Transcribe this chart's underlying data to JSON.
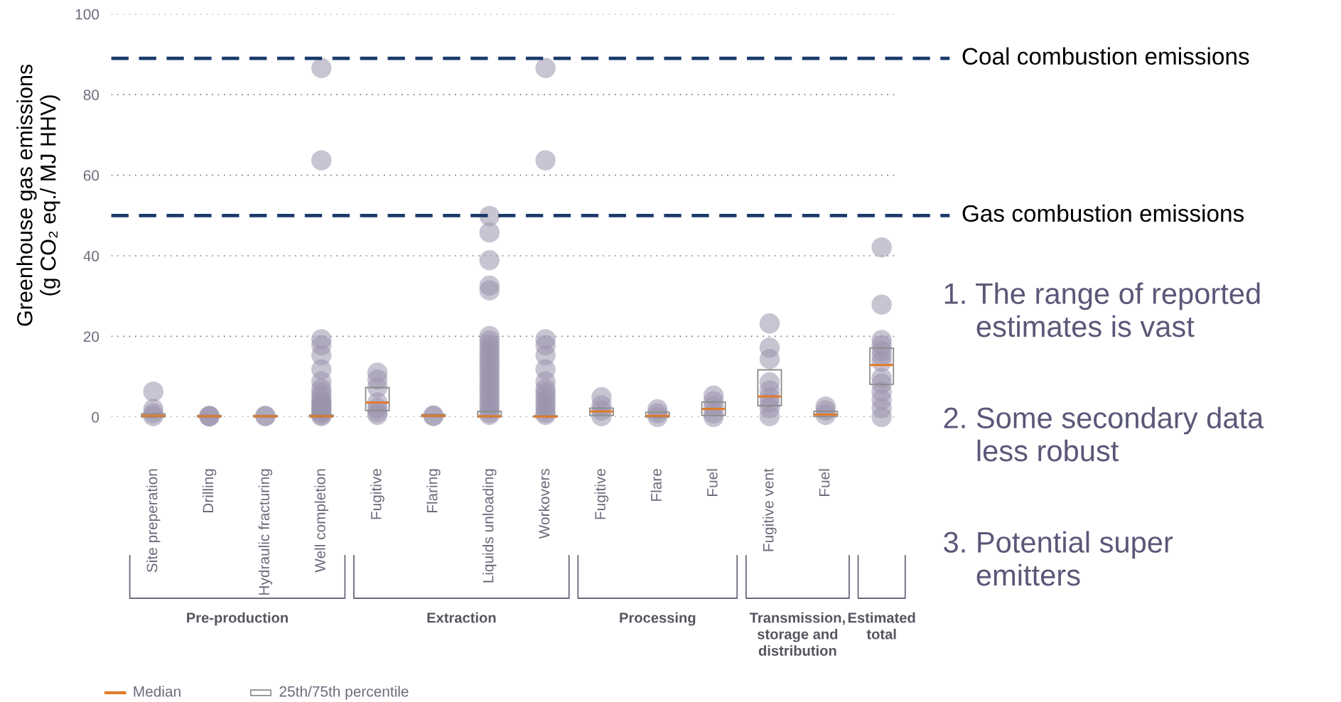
{
  "chart_data": {
    "type": "box",
    "ylabel": "Greenhouse gas emissions\n(g CO₂ eq./ MJ HHV)",
    "categories": [
      "Site preperation",
      "Drilling",
      "Hydraulic fracturing",
      "Well completion",
      "Fugitive",
      "Flaring",
      "Liquids unloading",
      "Workovers",
      "Fugitive",
      "Flare",
      "Fuel",
      "Fugitive vent",
      "Fuel",
      null
    ],
    "boxes": [
      {
        "low": 0,
        "q1": 0,
        "median": 0.3,
        "q3": 0.8,
        "high": 0.8,
        "outliers": [
          6.3,
          2.0,
          0.9,
          0.2
        ]
      },
      {
        "low": 0,
        "q1": 0,
        "median": 0.2,
        "q3": 0.4,
        "high": 0.4,
        "outliers": [
          0.3,
          0.2,
          0.1
        ]
      },
      {
        "low": 0,
        "q1": 0,
        "median": 0.2,
        "q3": 0.4,
        "high": 0.4,
        "outliers": [
          0.3,
          0.2
        ]
      },
      {
        "low": 0,
        "q1": 0,
        "median": 0.2,
        "q3": 0.5,
        "high": 0.5,
        "outliers": [
          86.6,
          63.7,
          19.3,
          17.8,
          15.3,
          11.8,
          8.8,
          7,
          6,
          5,
          4,
          3.5,
          3,
          2.5,
          2,
          1.5,
          1,
          0.5,
          0.2
        ]
      },
      {
        "low": 1.6,
        "q1": 1.6,
        "median": 3.6,
        "q3": 7.3,
        "high": 7.3,
        "outliers": [
          11.0,
          9.3,
          7.3,
          3.6,
          2.2,
          1.2,
          0.5
        ]
      },
      {
        "low": 0.1,
        "q1": 0.1,
        "median": 0.3,
        "q3": 0.6,
        "high": 0.6,
        "outliers": [
          0.4,
          0.2
        ]
      },
      {
        "low": 0,
        "q1": 0,
        "median": 0.2,
        "q3": 1.4,
        "high": 1.4,
        "outliers": [
          49.9,
          45.8,
          38.9,
          32.6,
          31.4,
          20.1,
          19,
          18,
          17,
          16,
          15,
          14,
          13,
          12,
          11,
          10,
          9,
          8,
          7,
          6,
          5,
          4,
          3,
          2,
          1,
          0.5
        ]
      },
      {
        "low": 0,
        "q1": 0,
        "median": 0.1,
        "q3": 0.3,
        "high": 0.3,
        "outliers": [
          86.6,
          63.7,
          19.3,
          17.8,
          15.3,
          11.8,
          8.8,
          7,
          6,
          5,
          4,
          3,
          2,
          1,
          0.5
        ]
      },
      {
        "low": 0.4,
        "q1": 0.4,
        "median": 1.4,
        "q3": 2.2,
        "high": 2.2,
        "outliers": [
          4.9,
          2.9,
          1.6,
          0.2
        ]
      },
      {
        "low": 0,
        "q1": 0,
        "median": 0.3,
        "q3": 1.2,
        "high": 1.2,
        "outliers": [
          1.9,
          0.9,
          0
        ]
      },
      {
        "low": 0.4,
        "q1": 0.4,
        "median": 2.0,
        "q3": 3.7,
        "high": 3.7,
        "outliers": [
          5.3,
          3.9,
          2.6,
          0.9,
          0
        ]
      },
      {
        "low": 2.8,
        "q1": 2.8,
        "median": 5.1,
        "q3": 11.7,
        "high": 11.7,
        "outliers": [
          23.2,
          17.2,
          14.4,
          8.6,
          6.6,
          4.9,
          3.6,
          2.2,
          0.2
        ]
      },
      {
        "low": 0.1,
        "q1": 0.1,
        "median": 0.6,
        "q3": 1.4,
        "high": 1.4,
        "outliers": [
          2.6,
          1.6,
          0.5
        ]
      },
      {
        "low": 8.1,
        "q1": 8.1,
        "median": 12.9,
        "q3": 17.1,
        "high": 17.1,
        "outliers": [
          42.1,
          27.9,
          19.1,
          17.8,
          16.4,
          15.1,
          13.7,
          9.7,
          8.3,
          6.3,
          4.3,
          2.2,
          0
        ]
      }
    ],
    "ylim": [
      0,
      100
    ],
    "yticks": [
      0,
      20,
      40,
      60,
      80,
      100
    ],
    "grid": "y",
    "ref_lines": [
      {
        "axis": "y",
        "value": 89,
        "label": "Coal combustion emissions",
        "color": "#1a3a6b",
        "line_style": "dashed"
      },
      {
        "axis": "y",
        "value": 50,
        "label": "Gas combustion emissions",
        "color": "#1a3a6b",
        "line_style": "dashed"
      }
    ],
    "annotations": [
      "Pre-production",
      "Extraction",
      "Processing",
      "Transmission,\nstorage and\ndistribution",
      "Estimated\ntotal",
      "Median",
      "25th/75th percentile",
      "1. The range of reported\n    estimates is vast",
      "2. Some secondary data\n    less robust",
      "3. Potential super\n    emitters"
    ]
  }
}
